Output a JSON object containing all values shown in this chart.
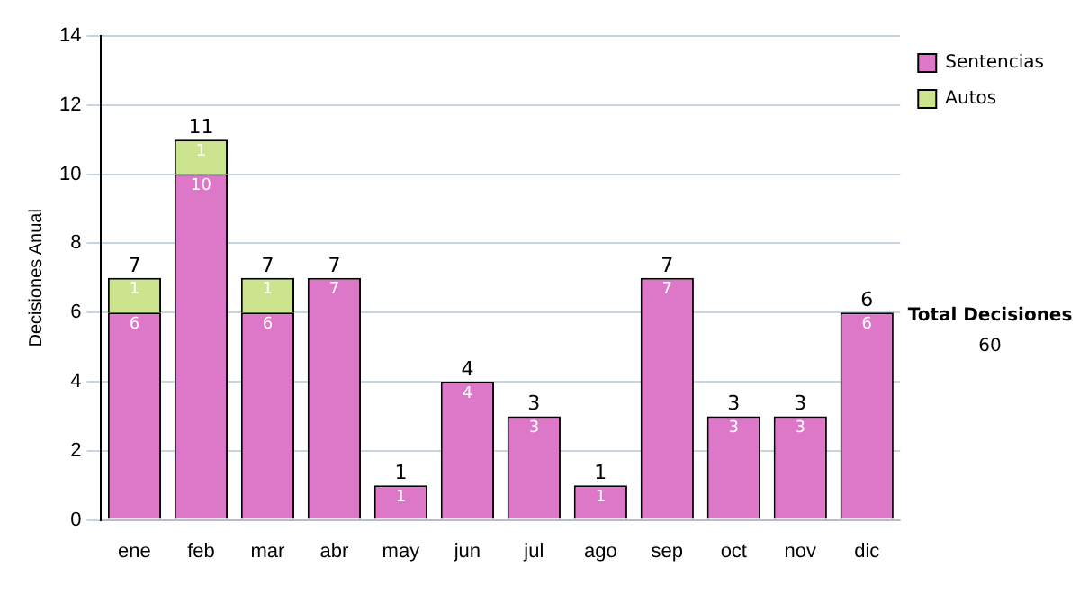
{
  "chart_data": {
    "type": "bar",
    "stacked": true,
    "ylabel": "Decisiones Anual",
    "categories": [
      "ene",
      "feb",
      "mar",
      "abr",
      "may",
      "jun",
      "jul",
      "ago",
      "sep",
      "oct",
      "nov",
      "dic"
    ],
    "series": [
      {
        "name": "Sentencias",
        "color": "#dd77c8",
        "values": [
          6,
          10,
          6,
          7,
          1,
          4,
          3,
          1,
          7,
          3,
          3,
          6
        ],
        "value_labels": [
          "6",
          "10",
          "6",
          "7",
          "1",
          "4",
          "3",
          "1",
          "7",
          "3",
          "3",
          "6"
        ]
      },
      {
        "name": "Autos",
        "color": "#cde48f",
        "values": [
          1,
          1,
          1,
          0,
          0,
          0,
          0,
          0,
          0,
          0,
          0,
          0
        ],
        "value_labels": [
          "1",
          "1",
          "1",
          null,
          null,
          null,
          null,
          null,
          null,
          null,
          null,
          null
        ]
      }
    ],
    "totals": [
      "7",
      "11",
      "7",
      "7",
      "1",
      "4",
      "3",
      "1",
      "7",
      "3",
      "3",
      "6"
    ],
    "ylim": [
      0,
      14
    ],
    "yticks": [
      0,
      2,
      4,
      6,
      8,
      10,
      12,
      14
    ],
    "grid": "y",
    "legend": "top right",
    "annotations": [
      "Total Decisiones",
      "60"
    ]
  }
}
